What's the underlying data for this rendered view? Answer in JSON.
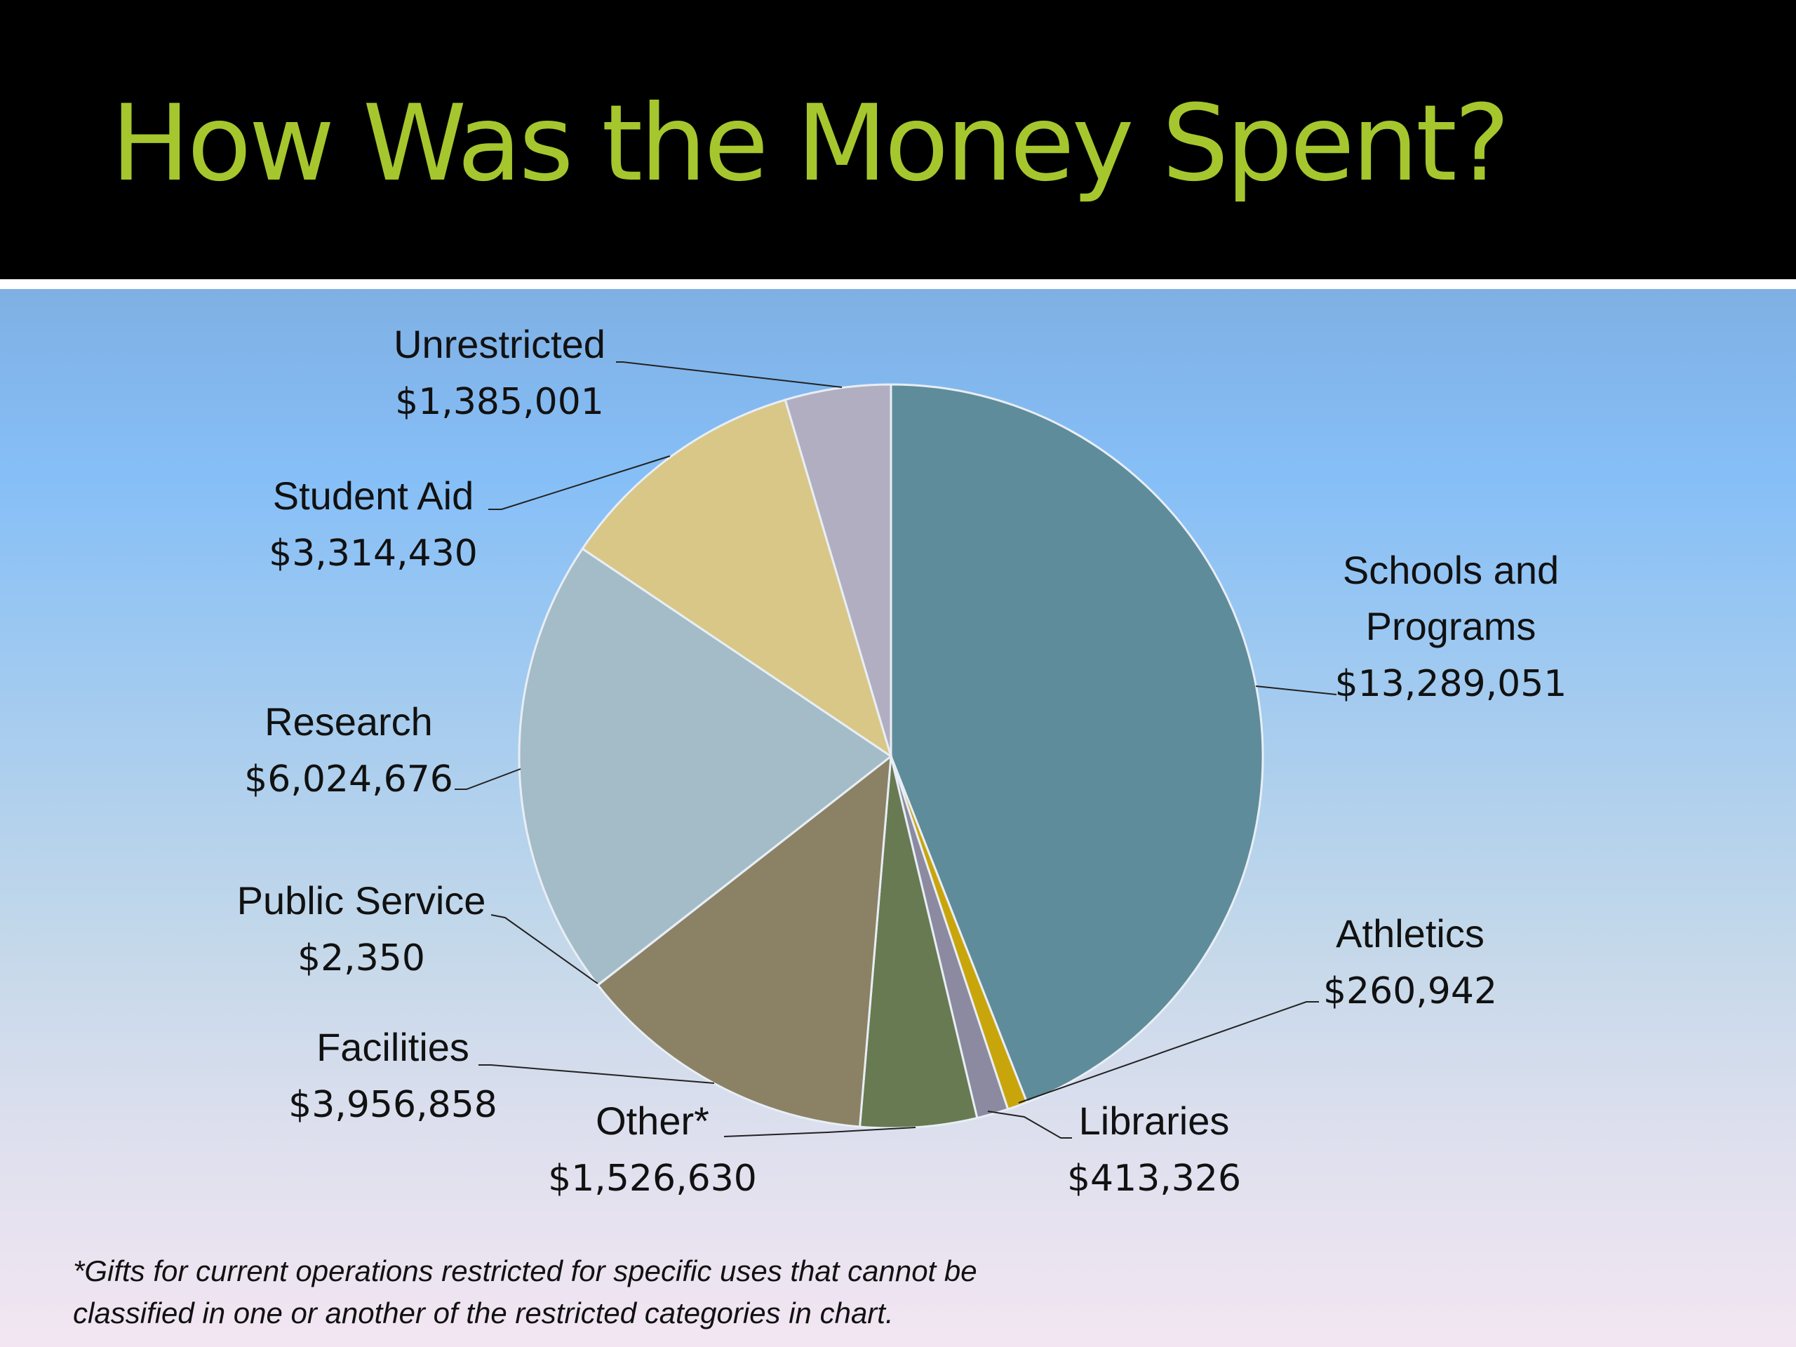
{
  "slide": {
    "title": "How Was the Money Spent?",
    "footnote_line1": "*Gifts for current operations restricted for specific uses that cannot be",
    "footnote_line2": "classified in one or another of the restricted categories in chart."
  },
  "chart_data": {
    "type": "pie",
    "title": "How Was the Money Spent?",
    "categories": [
      "Schools and Programs",
      "Athletics",
      "Libraries",
      "Other*",
      "Facilities",
      "Public Service",
      "Research",
      "Student Aid",
      "Unrestricted"
    ],
    "values": [
      13289051,
      260942,
      413326,
      1526630,
      3956858,
      2350,
      6024676,
      3314430,
      1385001
    ],
    "label_lines": [
      [
        "Schools and",
        "Programs"
      ],
      [
        "Athletics"
      ],
      [
        "Libraries"
      ],
      [
        "Other*"
      ],
      [
        "Facilities"
      ],
      [
        "Public Service"
      ],
      [
        "Research"
      ],
      [
        "Student Aid"
      ],
      [
        "Unrestricted"
      ]
    ],
    "value_labels": [
      "$13,289,051",
      "$260,942",
      "$413,326",
      "$1,526,630",
      "$3,956,858",
      "$2,350",
      "$6,024,676",
      "$3,314,430",
      "$1,385,001"
    ],
    "colors": [
      "#5f8c9a",
      "#c9a50c",
      "#8c8aa0",
      "#677a52",
      "#8b8164",
      "#e6ecf2",
      "#a3bcc8",
      "#d8c787",
      "#b2aec2"
    ],
    "start_angle": "12 o'clock",
    "direction": "clockwise",
    "legend": "none (callout labels with leader lines)"
  }
}
